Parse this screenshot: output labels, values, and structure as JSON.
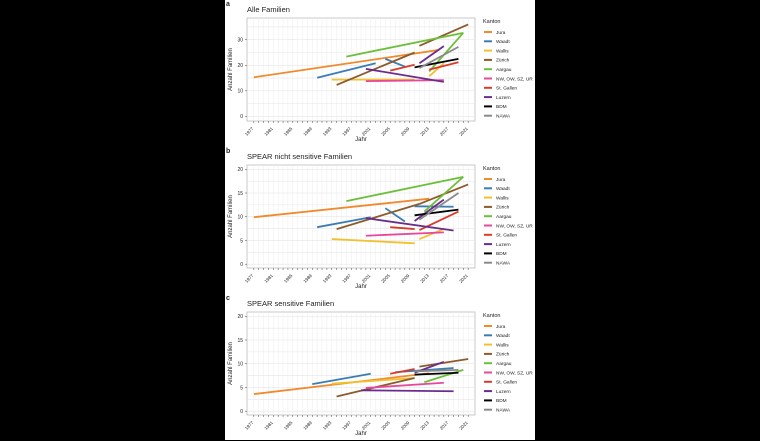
{
  "chart_data": [
    {
      "panel_label": "a",
      "type": "line",
      "title": "Alle Familien",
      "xlabel": "Jahr",
      "ylabel": "Anzahl Familien",
      "xlim": [
        1975.6,
        2022.4
      ],
      "ylim": [
        -1.8,
        38.5
      ],
      "xticks": [
        1977,
        1981,
        1985,
        1989,
        1993,
        1997,
        2001,
        2005,
        2009,
        2013,
        2017,
        2021
      ],
      "yticks": [
        0,
        10,
        20,
        30
      ],
      "grid": true,
      "legend_title": "Kanton",
      "legend_position": "right",
      "series": [
        {
          "name": "Jura",
          "color": "#f08a2c",
          "segments": [
            [
              [
                1977,
                15.3
              ],
              [
                2015,
                26
              ]
            ]
          ]
        },
        {
          "name": "Waadt",
          "color": "#3a7db5",
          "segments": [
            [
              [
                1990,
                15.1
              ],
              [
                2002,
                20.8
              ]
            ],
            [
              [
                2004,
                22.5
              ],
              [
                2008,
                19.5
              ]
            ]
          ]
        },
        {
          "name": "Wallis",
          "color": "#f2c12e",
          "segments": [
            [
              [
                1993,
                14.4
              ],
              [
                2010,
                14.4
              ]
            ],
            [
              [
                2013,
                15.7
              ],
              [
                2016,
                20.8
              ]
            ]
          ]
        },
        {
          "name": "Zürich",
          "color": "#8c5a2b",
          "segments": [
            [
              [
                1994,
                12.3
              ],
              [
                2010,
                25
              ]
            ],
            [
              [
                2011,
                27.6
              ],
              [
                2021,
                36
              ]
            ]
          ]
        },
        {
          "name": "Aargau",
          "color": "#6cbf3a",
          "segments": [
            [
              [
                1996,
                23.4
              ],
              [
                2020,
                32.7
              ]
            ],
            [
              [
                2013,
                17.6
              ],
              [
                2020,
                32.7
              ]
            ]
          ]
        },
        {
          "name": "NW, OW, SZ, UR",
          "color": "#e8489a",
          "segments": [
            [
              [
                2000,
                13.8
              ],
              [
                2016,
                14.2
              ]
            ]
          ]
        },
        {
          "name": "St. Gallen",
          "color": "#d93b2b",
          "segments": [
            [
              [
                2005,
                17.9
              ],
              [
                2010,
                20.2
              ]
            ],
            [
              [
                2013,
                18.3
              ],
              [
                2019,
                21.2
              ]
            ]
          ]
        },
        {
          "name": "Luzern",
          "color": "#6b2d8c",
          "segments": [
            [
              [
                2000,
                18.6
              ],
              [
                2016,
                13.5
              ]
            ],
            [
              [
                2011,
                20.8
              ],
              [
                2016,
                27.5
              ]
            ]
          ]
        },
        {
          "name": "BDM",
          "color": "#000000",
          "segments": [
            [
              [
                2010,
                19.2
              ],
              [
                2019,
                22.5
              ]
            ]
          ]
        },
        {
          "name": "NAWA",
          "color": "#8a8a8a",
          "segments": [
            [
              [
                2011,
                18.9
              ],
              [
                2019,
                27.2
              ]
            ]
          ]
        }
      ]
    },
    {
      "panel_label": "b",
      "type": "line",
      "title": "SPEAR nicht sensitive Familien",
      "xlabel": "Jahr",
      "ylabel": "Anzahl Familien",
      "xlim": [
        1975.6,
        2022.4
      ],
      "ylim": [
        -0.8,
        20.9
      ],
      "xticks": [
        1977,
        1981,
        1985,
        1989,
        1993,
        1997,
        2001,
        2005,
        2009,
        2013,
        2017,
        2021
      ],
      "yticks": [
        0,
        5,
        10,
        15,
        20
      ],
      "grid": true,
      "legend_title": "Kanton",
      "legend_position": "right",
      "series": [
        {
          "name": "Jura",
          "color": "#f08a2c",
          "segments": [
            [
              [
                1977,
                9.9
              ],
              [
                2013,
                13.8
              ]
            ]
          ]
        },
        {
          "name": "Waadt",
          "color": "#3a7db5",
          "segments": [
            [
              [
                1990,
                7.8
              ],
              [
                2001,
                9.9
              ]
            ],
            [
              [
                2004,
                11.8
              ],
              [
                2008,
                9
              ]
            ],
            [
              [
                2010,
                12.2
              ],
              [
                2018,
                12.1
              ]
            ]
          ]
        },
        {
          "name": "Wallis",
          "color": "#f2c12e",
          "segments": [
            [
              [
                1993,
                5.3
              ],
              [
                2010,
                4.4
              ]
            ],
            [
              [
                2011,
                5.3
              ],
              [
                2016,
                7.4
              ]
            ]
          ]
        },
        {
          "name": "Zürich",
          "color": "#8c5a2b",
          "segments": [
            [
              [
                1994,
                7.4
              ],
              [
                2011,
                12.7
              ]
            ],
            [
              [
                2011,
                12.7
              ],
              [
                2021,
                16.8
              ]
            ]
          ]
        },
        {
          "name": "Aargau",
          "color": "#6cbf3a",
          "segments": [
            [
              [
                1996,
                13.3
              ],
              [
                2020,
                18.4
              ]
            ],
            [
              [
                2012,
                11.1
              ],
              [
                2020,
                18.4
              ]
            ]
          ]
        },
        {
          "name": "NW, OW, SZ, UR",
          "color": "#e8489a",
          "segments": [
            [
              [
                2000,
                6
              ],
              [
                2016,
                6.7
              ]
            ]
          ]
        },
        {
          "name": "St. Gallen",
          "color": "#d93b2b",
          "segments": [
            [
              [
                2005,
                7.8
              ],
              [
                2010,
                7.4
              ]
            ],
            [
              [
                2011,
                7.2
              ],
              [
                2019,
                11.1
              ]
            ]
          ]
        },
        {
          "name": "Luzern",
          "color": "#6b2d8c",
          "segments": [
            [
              [
                2000,
                9.7
              ],
              [
                2018,
                7.1
              ]
            ],
            [
              [
                2010,
                9.1
              ],
              [
                2016,
                13.6
              ]
            ]
          ]
        },
        {
          "name": "BDM",
          "color": "#000000",
          "segments": [
            [
              [
                2010,
                10.3
              ],
              [
                2019,
                11.5
              ]
            ]
          ]
        },
        {
          "name": "NAWA",
          "color": "#8a8a8a",
          "segments": [
            [
              [
                2011,
                9.4
              ],
              [
                2019,
                15
              ]
            ]
          ]
        }
      ]
    },
    {
      "panel_label": "c",
      "type": "line",
      "title": "SPEAR sensitive Familien",
      "xlabel": "Jahr",
      "ylabel": "Anzahl Familien",
      "xlim": [
        1975.6,
        2022.4
      ],
      "ylim": [
        -0.8,
        20.9
      ],
      "xticks": [
        1977,
        1981,
        1985,
        1989,
        1993,
        1997,
        2001,
        2005,
        2009,
        2013,
        2017,
        2021
      ],
      "yticks": [
        0,
        5,
        10,
        15,
        20
      ],
      "grid": true,
      "legend_title": "Kanton",
      "legend_position": "right",
      "series": [
        {
          "name": "Jura",
          "color": "#f08a2c",
          "segments": [
            [
              [
                1977,
                3.6
              ],
              [
                2013,
                8
              ]
            ]
          ]
        },
        {
          "name": "Waadt",
          "color": "#3a7db5",
          "segments": [
            [
              [
                1989,
                5.7
              ],
              [
                2001,
                7.9
              ]
            ],
            [
              [
                2006,
                8.2
              ],
              [
                2018,
                9.1
              ]
            ]
          ]
        },
        {
          "name": "Wallis",
          "color": "#f2c12e",
          "segments": [
            [
              [
                1993,
                5.8
              ],
              [
                2010,
                7
              ]
            ]
          ]
        },
        {
          "name": "Zürich",
          "color": "#8c5a2b",
          "segments": [
            [
              [
                1994,
                3.1
              ],
              [
                2010,
                7
              ]
            ],
            [
              [
                2011,
                9.4
              ],
              [
                2021,
                11
              ]
            ]
          ]
        },
        {
          "name": "Aargau",
          "color": "#6cbf3a",
          "segments": [
            [
              [
                2012,
                6.1
              ],
              [
                2020,
                8.7
              ]
            ]
          ]
        },
        {
          "name": "NW, OW, SZ, UR",
          "color": "#e8489a",
          "segments": [
            [
              [
                2000,
                4.9
              ],
              [
                2016,
                6
              ]
            ]
          ]
        },
        {
          "name": "St. Gallen",
          "color": "#d93b2b",
          "segments": [
            [
              [
                2005,
                7.9
              ],
              [
                2010,
                8.9
              ]
            ]
          ]
        },
        {
          "name": "Luzern",
          "color": "#6b2d8c",
          "segments": [
            [
              [
                1999,
                4.4
              ],
              [
                2018,
                4.2
              ]
            ],
            [
              [
                2010,
                8.1
              ],
              [
                2016,
                10.4
              ]
            ]
          ]
        },
        {
          "name": "BDM",
          "color": "#000000",
          "segments": [
            [
              [
                2010,
                7.7
              ],
              [
                2019,
                8.1
              ]
            ]
          ]
        },
        {
          "name": "NAWA",
          "color": "#8a8a8a",
          "segments": [
            [
              [
                2010,
                8.4
              ],
              [
                2019,
                8.7
              ]
            ]
          ]
        }
      ]
    }
  ]
}
